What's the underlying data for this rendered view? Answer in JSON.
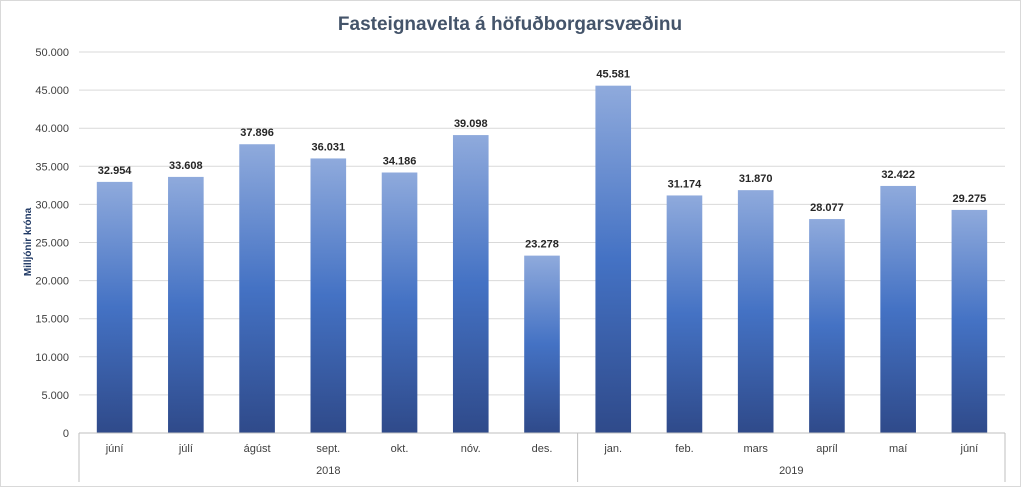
{
  "chart_data": {
    "type": "bar",
    "title": "Fasteignavelta á höfuðborgarsvæðinu",
    "ylabel": "Milljónir króna",
    "xlabel": "",
    "ylim": [
      0,
      50000
    ],
    "yticks": [
      0,
      5000,
      10000,
      15000,
      20000,
      25000,
      30000,
      35000,
      40000,
      45000,
      50000
    ],
    "ytick_labels": [
      "0",
      "5.000",
      "10.000",
      "15.000",
      "20.000",
      "25.000",
      "30.000",
      "35.000",
      "40.000",
      "45.000",
      "50.000"
    ],
    "grid": true,
    "categories": [
      "júní",
      "júlí",
      "ágúst",
      "sept.",
      "okt.",
      "nóv.",
      "des.",
      "jan.",
      "feb.",
      "mars",
      "apríl",
      "maí",
      "júní"
    ],
    "values": [
      32954,
      33608,
      37896,
      36031,
      34186,
      39098,
      23278,
      45581,
      31174,
      31870,
      28077,
      32422,
      29275
    ],
    "data_labels": [
      "32.954",
      "33.608",
      "37.896",
      "36.031",
      "34.186",
      "39.098",
      "23.278",
      "45.581",
      "31.174",
      "31.870",
      "28.077",
      "32.422",
      "29.275"
    ],
    "groups": [
      {
        "label": "2018",
        "count": 7
      },
      {
        "label": "2019",
        "count": 6
      }
    ],
    "colors": {
      "bar_top": "#8faadc",
      "bar_mid": "#4472c4",
      "bar_bottom": "#2f4a8a",
      "grid": "#d9d9d9",
      "axis": "#bfbfbf"
    }
  }
}
